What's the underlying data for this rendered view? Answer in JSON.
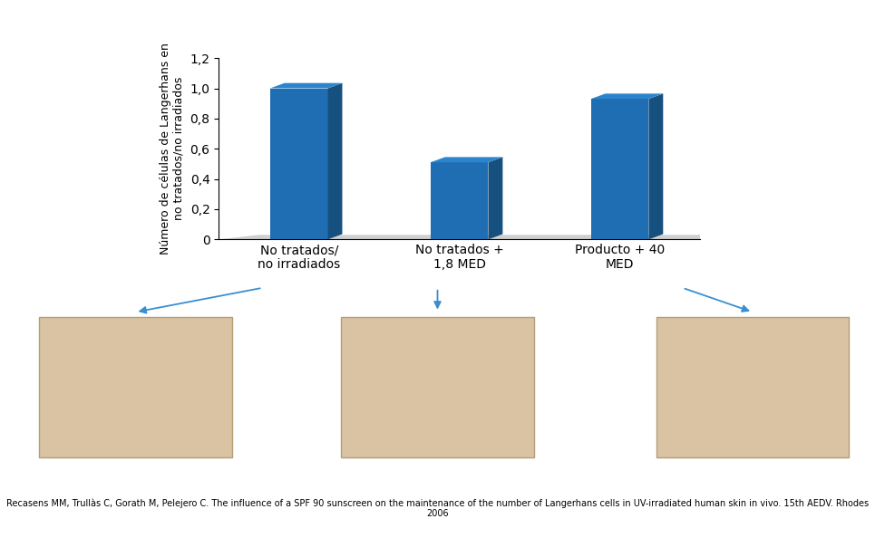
{
  "chart_data": {
    "type": "bar",
    "y_label": "Número de células de Langerhans en no tratados/no irradiados",
    "categories": [
      "No tratados/ no irradiados",
      "No tratados + 1,8 MED",
      "Producto + 40 MED"
    ],
    "values": [
      1.0,
      0.51,
      0.93
    ],
    "color": "#1f6db3",
    "ylim": [
      0,
      1.2
    ],
    "yticks": [
      0,
      {
        "value": 0.2,
        "label": "0,2"
      },
      {
        "value": 0.4,
        "label": "0,4"
      },
      {
        "value": 0.6,
        "label": "0,6"
      },
      {
        "value": 0.8,
        "label": "0,8"
      },
      {
        "value": 1.0,
        "label": "1,0"
      },
      {
        "value": 1.2,
        "label": "1,2"
      }
    ],
    "grid": false,
    "annotations": [
      "Recasens MM, Trullàs C, Gorath M, Pelejero C. The influence of a SPF 90 sunscreen on the maintenance of the number of Langerhans cells in UV-irradiated human skin in vivo. 15th AEDV. Rhodes 2006"
    ]
  }
}
